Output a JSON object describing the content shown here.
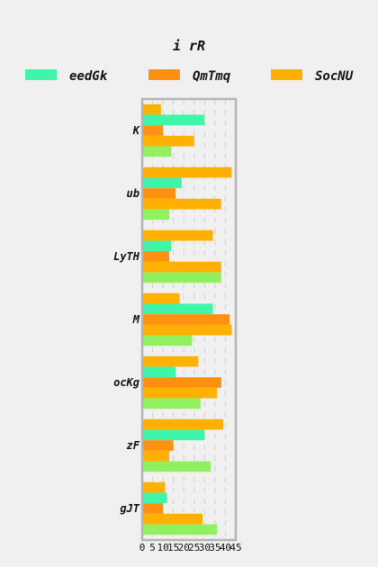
{
  "chart_data": {
    "type": "bar",
    "orientation": "horizontal",
    "title": "i  rR",
    "categories": [
      "K",
      "ub",
      "LyTH",
      "M",
      "ocKg",
      "zF",
      "gJT"
    ],
    "series": [
      {
        "name": null,
        "color": "#ffb000",
        "values": [
          9,
          43,
          34,
          18,
          27,
          39,
          11
        ]
      },
      {
        "name": "eedGk",
        "color": "#3ff5aa",
        "values": [
          30,
          19,
          14,
          34,
          16,
          30,
          12
        ]
      },
      {
        "name": "QmTmq",
        "color": "#ff9010",
        "values": [
          10,
          16,
          13,
          42,
          38,
          15,
          10
        ]
      },
      {
        "name": "SocNU",
        "color": "#ffb000",
        "values": [
          25,
          38,
          38,
          43,
          36,
          13,
          29
        ]
      },
      {
        "name": null,
        "color": "#90f060",
        "values": [
          14,
          13,
          38,
          24,
          28,
          33,
          36
        ]
      }
    ],
    "xticks": [
      "0",
      "5",
      "10",
      "15",
      "20",
      "25",
      "30",
      "35",
      "40",
      "45"
    ],
    "xlim": [
      0,
      45
    ],
    "xlabel": "",
    "ylabel": "",
    "grid": true,
    "legend_position": "top"
  }
}
